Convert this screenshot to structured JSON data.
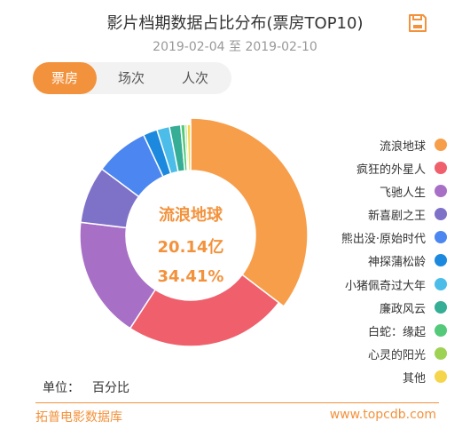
{
  "header": {
    "title": "影片档期数据占比分布(票房TOP10)",
    "date_start": "2019-02-04",
    "date_separator": "至",
    "date_end": "2019-02-10"
  },
  "icons": {
    "save": "save-icon"
  },
  "tabs": [
    {
      "label": "票房",
      "active": true
    },
    {
      "label": "场次",
      "active": false
    },
    {
      "label": "人次",
      "active": false
    }
  ],
  "center": {
    "name": "流浪地球",
    "value": "20.14亿",
    "percent": "34.41%"
  },
  "unit": {
    "label": "单位：",
    "value": "百分比"
  },
  "footer": {
    "brand": "拓普电影数据库",
    "url": "www.topcdb.com"
  },
  "colors": {
    "accent": "#f3923c"
  },
  "chart_data": {
    "type": "pie",
    "variant": "donut",
    "unit": "百分比",
    "categories": [
      "流浪地球",
      "疯狂的外星人",
      "飞驰人生",
      "新喜剧之王",
      "熊出没·原始时代",
      "神探蒲松龄",
      "小猪佩奇过大年",
      "廉政风云",
      "白蛇：缘起",
      "心灵的阳光",
      "其他"
    ],
    "values": [
      34.41,
      23.2,
      17.2,
      8.1,
      7.6,
      2.0,
      1.8,
      1.6,
      0.6,
      0.3,
      0.5
    ],
    "colors": [
      "#f79e4a",
      "#ef5f6c",
      "#a86fc6",
      "#7e71c8",
      "#4c86f0",
      "#1c89de",
      "#4cbde8",
      "#36ad95",
      "#54c97a",
      "#9ed254",
      "#f5d54c"
    ],
    "highlighted": "流浪地球",
    "legend_position": "right"
  }
}
